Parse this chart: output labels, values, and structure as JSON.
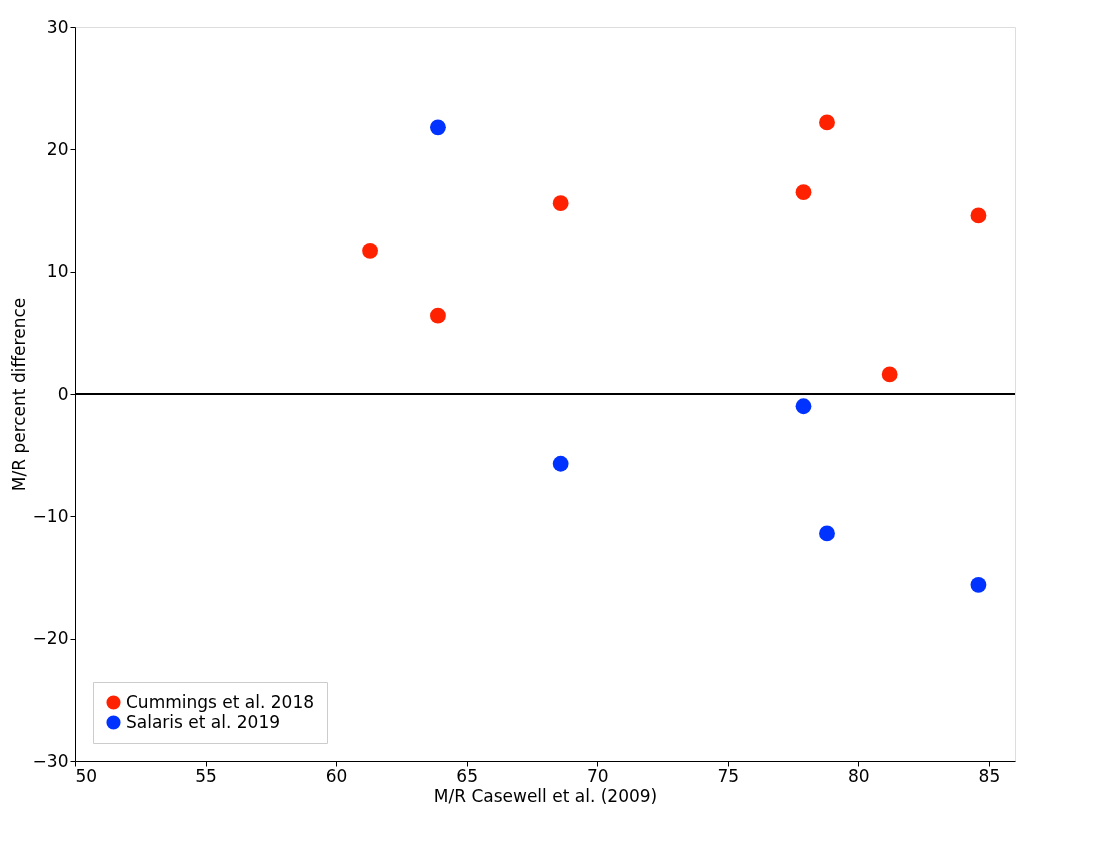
{
  "chart_data": {
    "type": "scatter",
    "xlabel": "M/R Casewell et al. (2009)",
    "ylabel": "M/R percent difference",
    "xlim": [
      50,
      86
    ],
    "xticks": [
      50,
      55,
      60,
      65,
      70,
      75,
      80,
      85
    ],
    "ylim": [
      -30,
      30
    ],
    "yticks": [
      -30,
      -20,
      -10,
      0,
      10,
      20,
      30
    ],
    "grid": false,
    "legend": "bottom left",
    "marker": "circle",
    "ref_lines": [
      {
        "axis": "y",
        "value": 0,
        "color": "#000000"
      }
    ],
    "series": [
      {
        "name": "Cummings et al. 2018",
        "color": "#ff2200",
        "x": [
          61.3,
          63.9,
          68.6,
          77.9,
          78.8,
          84.6,
          81.2
        ],
        "values": [
          11.7,
          6.4,
          15.6,
          16.5,
          22.2,
          14.6,
          1.6
        ]
      },
      {
        "name": "Salaris et al. 2019",
        "color": "#0033ff",
        "x": [
          63.9,
          68.6,
          77.9,
          78.8,
          84.6
        ],
        "values": [
          21.8,
          -5.7,
          -1.0,
          -11.4,
          -15.6
        ]
      }
    ]
  }
}
